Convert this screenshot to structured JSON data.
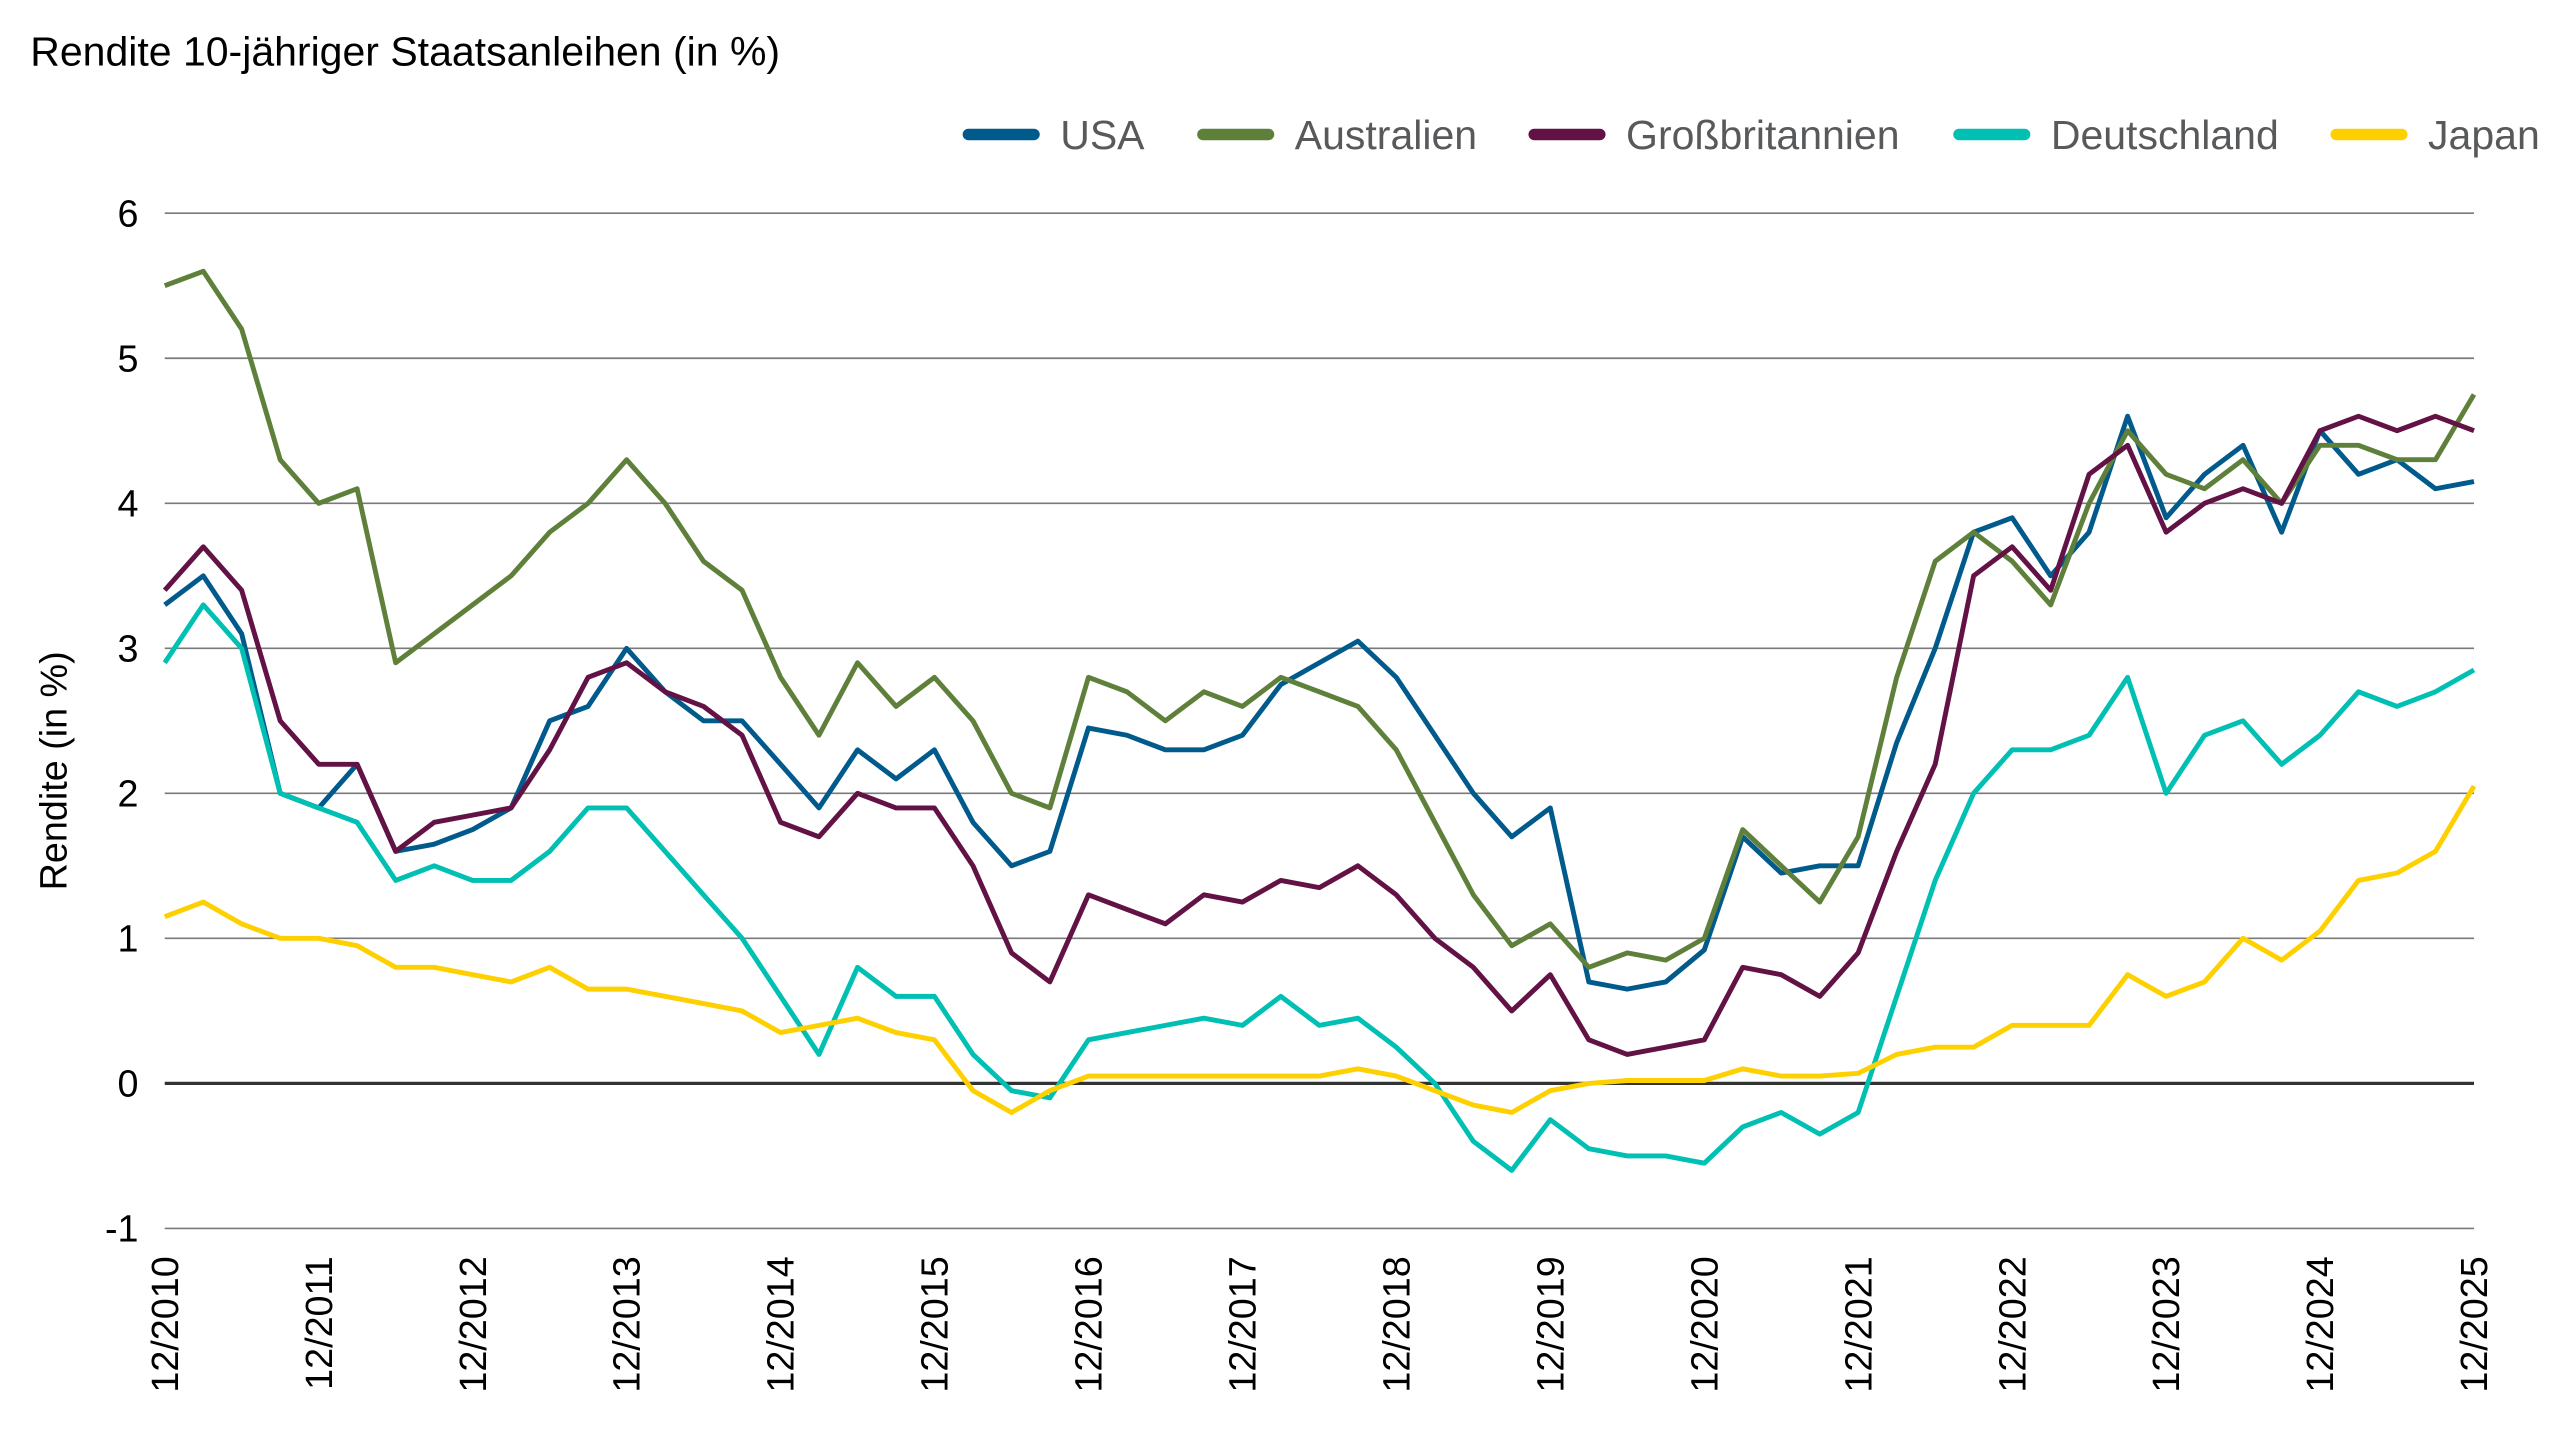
{
  "chart_data": {
    "type": "line",
    "title": "Rendite 10-jähriger Staatsanleihen (in %)",
    "xlabel": "",
    "ylabel": "Rendite (in %)",
    "ylim": [
      -1,
      6
    ],
    "yticks": [
      "-1",
      "0",
      "1",
      "2",
      "3",
      "4",
      "5",
      "6"
    ],
    "xticks": [
      "12/2010",
      "12/2011",
      "12/2012",
      "12/2013",
      "12/2014",
      "12/2015",
      "12/2016",
      "12/2017",
      "12/2018",
      "12/2019",
      "12/2020",
      "12/2021",
      "12/2022",
      "12/2023",
      "12/2024",
      "12/2025"
    ],
    "grid": true,
    "legend_position": "top-right",
    "x": [
      "12/2010",
      "03/2011",
      "06/2011",
      "09/2011",
      "12/2011",
      "03/2012",
      "06/2012",
      "09/2012",
      "12/2012",
      "03/2013",
      "06/2013",
      "09/2013",
      "12/2013",
      "03/2014",
      "06/2014",
      "09/2014",
      "12/2014",
      "03/2015",
      "06/2015",
      "09/2015",
      "12/2015",
      "03/2016",
      "06/2016",
      "09/2016",
      "12/2016",
      "03/2017",
      "06/2017",
      "09/2017",
      "12/2017",
      "03/2018",
      "06/2018",
      "09/2018",
      "12/2018",
      "03/2019",
      "06/2019",
      "09/2019",
      "12/2019",
      "03/2020",
      "06/2020",
      "09/2020",
      "12/2020",
      "03/2021",
      "06/2021",
      "09/2021",
      "12/2021",
      "03/2022",
      "06/2022",
      "09/2022",
      "12/2022",
      "03/2023",
      "06/2023",
      "09/2023",
      "12/2023",
      "03/2024",
      "06/2024",
      "09/2024",
      "12/2024",
      "03/2025",
      "06/2025",
      "09/2025",
      "12/2025"
    ],
    "series": [
      {
        "name": "USA",
        "color": "#005a8c",
        "values": [
          3.3,
          3.5,
          3.1,
          2.0,
          1.9,
          2.2,
          1.6,
          1.65,
          1.75,
          1.9,
          2.5,
          2.6,
          3.0,
          2.7,
          2.5,
          2.5,
          2.2,
          1.9,
          2.3,
          2.1,
          2.3,
          1.8,
          1.5,
          1.6,
          2.45,
          2.4,
          2.3,
          2.3,
          2.4,
          2.75,
          2.9,
          3.05,
          2.8,
          2.4,
          2.0,
          1.7,
          1.9,
          0.7,
          0.65,
          0.7,
          0.92,
          1.7,
          1.45,
          1.5,
          1.5,
          2.35,
          3.0,
          3.8,
          3.9,
          3.5,
          3.8,
          4.6,
          3.9,
          4.2,
          4.4,
          3.8,
          4.5,
          4.2,
          4.3,
          4.1,
          4.15
        ]
      },
      {
        "name": "Australien",
        "color": "#5f803a",
        "values": [
          5.5,
          5.6,
          5.2,
          4.3,
          4.0,
          4.1,
          2.9,
          3.1,
          3.3,
          3.5,
          3.8,
          4.0,
          4.3,
          4.0,
          3.6,
          3.4,
          2.8,
          2.4,
          2.9,
          2.6,
          2.8,
          2.5,
          2.0,
          1.9,
          2.8,
          2.7,
          2.5,
          2.7,
          2.6,
          2.8,
          2.7,
          2.6,
          2.3,
          1.8,
          1.3,
          0.95,
          1.1,
          0.8,
          0.9,
          0.85,
          1.0,
          1.75,
          1.5,
          1.25,
          1.7,
          2.8,
          3.6,
          3.8,
          3.6,
          3.3,
          4.0,
          4.5,
          4.2,
          4.1,
          4.3,
          4.0,
          4.4,
          4.4,
          4.3,
          4.3,
          4.75
        ]
      },
      {
        "name": "Großbritannien",
        "color": "#621244",
        "values": [
          3.4,
          3.7,
          3.4,
          2.5,
          2.2,
          2.2,
          1.6,
          1.8,
          1.85,
          1.9,
          2.3,
          2.8,
          2.9,
          2.7,
          2.6,
          2.4,
          1.8,
          1.7,
          2.0,
          1.9,
          1.9,
          1.5,
          0.9,
          0.7,
          1.3,
          1.2,
          1.1,
          1.3,
          1.25,
          1.4,
          1.35,
          1.5,
          1.3,
          1.0,
          0.8,
          0.5,
          0.75,
          0.3,
          0.2,
          0.25,
          0.3,
          0.8,
          0.75,
          0.6,
          0.9,
          1.6,
          2.2,
          3.5,
          3.7,
          3.4,
          4.2,
          4.4,
          3.8,
          4.0,
          4.1,
          4.0,
          4.5,
          4.6,
          4.5,
          4.6,
          4.5
        ]
      },
      {
        "name": "Deutschland",
        "color": "#00bfb3",
        "values": [
          2.9,
          3.3,
          3.0,
          2.0,
          1.9,
          1.8,
          1.4,
          1.5,
          1.4,
          1.4,
          1.6,
          1.9,
          1.9,
          1.6,
          1.3,
          1.0,
          0.6,
          0.2,
          0.8,
          0.6,
          0.6,
          0.2,
          -0.05,
          -0.1,
          0.3,
          0.35,
          0.4,
          0.45,
          0.4,
          0.6,
          0.4,
          0.45,
          0.25,
          0.0,
          -0.4,
          -0.6,
          -0.25,
          -0.45,
          -0.5,
          -0.5,
          -0.55,
          -0.3,
          -0.2,
          -0.35,
          -0.2,
          0.6,
          1.4,
          2.0,
          2.3,
          2.3,
          2.4,
          2.8,
          2.0,
          2.4,
          2.5,
          2.2,
          2.4,
          2.7,
          2.6,
          2.7,
          2.85
        ]
      },
      {
        "name": "Japan",
        "color": "#ffd000",
        "values": [
          1.15,
          1.25,
          1.1,
          1.0,
          1.0,
          0.95,
          0.8,
          0.8,
          0.75,
          0.7,
          0.8,
          0.65,
          0.65,
          0.6,
          0.55,
          0.5,
          0.35,
          0.4,
          0.45,
          0.35,
          0.3,
          -0.05,
          -0.2,
          -0.05,
          0.05,
          0.05,
          0.05,
          0.05,
          0.05,
          0.05,
          0.05,
          0.1,
          0.05,
          -0.05,
          -0.15,
          -0.2,
          -0.05,
          0.0,
          0.02,
          0.02,
          0.02,
          0.1,
          0.05,
          0.05,
          0.07,
          0.2,
          0.25,
          0.25,
          0.4,
          0.4,
          0.4,
          0.75,
          0.6,
          0.7,
          1.0,
          0.85,
          1.05,
          1.4,
          1.45,
          1.6,
          2.05
        ]
      }
    ]
  }
}
